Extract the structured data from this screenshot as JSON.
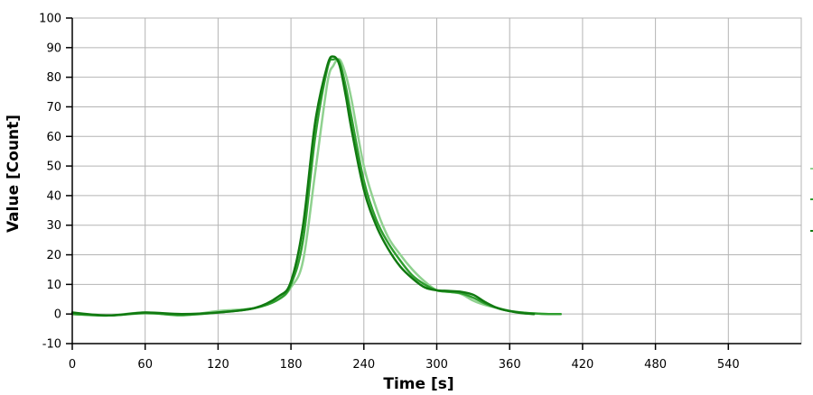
{
  "chart_data": {
    "type": "line",
    "title": "",
    "xlabel": "Time [s]",
    "ylabel": "Value [Count]",
    "xlim": [
      0,
      600
    ],
    "ylim": [
      -10,
      100
    ],
    "xticks": [
      0,
      60,
      120,
      180,
      240,
      300,
      360,
      420,
      480,
      540
    ],
    "yticks": [
      -10,
      0,
      10,
      20,
      30,
      40,
      50,
      60,
      70,
      80,
      90,
      100
    ],
    "grid": true,
    "legend": "right (partially cut off)",
    "series": [
      {
        "color": "#8fd18f",
        "width": 2.5,
        "x": [
          0,
          30,
          60,
          90,
          120,
          150,
          170,
          180,
          190,
          200,
          210,
          215,
          220,
          225,
          230,
          240,
          250,
          260,
          270,
          280,
          290,
          300,
          310,
          320,
          330,
          340,
          350,
          360,
          370,
          380,
          392,
          402
        ],
        "values": [
          0,
          -0.5,
          0.5,
          -0.5,
          1,
          2,
          5,
          9,
          18,
          48,
          78,
          84,
          86,
          81,
          72,
          50,
          36,
          26,
          20,
          15,
          11,
          8,
          7.5,
          6.8,
          4.5,
          3,
          2,
          1,
          0.5,
          0.2,
          0,
          0
        ]
      },
      {
        "color": "#2f9e2f",
        "width": 2.5,
        "x": [
          0,
          30,
          60,
          90,
          120,
          150,
          170,
          180,
          190,
          200,
          210,
          215,
          220,
          225,
          230,
          240,
          250,
          260,
          270,
          280,
          290,
          300,
          310,
          320,
          330,
          340,
          350,
          360,
          370,
          380,
          392,
          402
        ],
        "values": [
          0,
          -0.5,
          0.3,
          -0.3,
          0.5,
          2,
          5,
          10,
          25,
          60,
          83,
          86,
          85,
          77,
          66,
          45,
          32,
          24,
          18,
          13,
          10,
          8,
          7.5,
          7,
          5.5,
          3.5,
          2,
          1,
          0.5,
          0.2,
          0,
          0
        ]
      },
      {
        "color": "#117a11",
        "width": 2.5,
        "x": [
          0,
          30,
          60,
          90,
          120,
          150,
          170,
          180,
          190,
          200,
          210,
          215,
          220,
          225,
          230,
          240,
          250,
          260,
          270,
          280,
          290,
          300,
          310,
          320,
          330,
          340,
          350,
          360,
          370,
          380
        ],
        "values": [
          0.5,
          -0.5,
          0.5,
          0,
          0.5,
          2,
          6,
          11,
          30,
          65,
          84,
          87,
          84,
          74,
          62,
          42,
          30,
          22,
          16,
          12,
          9,
          8,
          7.8,
          7.5,
          6.5,
          4,
          2,
          1,
          0.3,
          0
        ]
      }
    ]
  }
}
